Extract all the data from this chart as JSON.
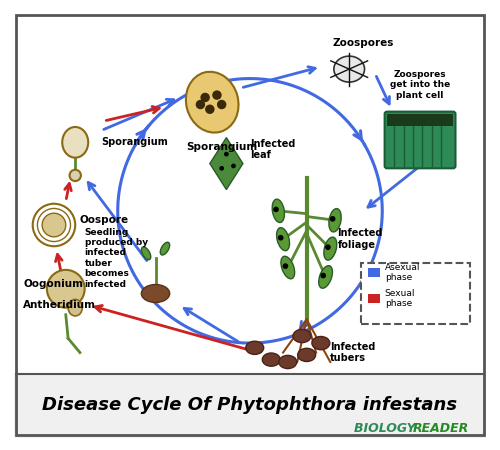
{
  "title": "Disease Cycle Of Phytophthora infestans",
  "title_fontsize": 13,
  "title_fontweight": "bold",
  "watermark": "BIOLOGY READER",
  "watermark_color1": "#2e8b57",
  "watermark_color2": "#228b22",
  "bg_color": "#ffffff",
  "border_color": "#333333",
  "bottom_bar_color": "#f5f5f5",
  "asexual_color": "#4169e1",
  "sexual_color": "#cc2222",
  "labels": {
    "zoospores": "Zoospores",
    "zoospores_cell": "Zoospores\nget into the\nplant cell",
    "sporangium_top": "Sporangium",
    "infected_leaf": "Infected\nleaf",
    "infected_foliage": "Infected\nfoliage",
    "infected_tubers": "Infected\ntubers",
    "seedling": "Seedling\nproduced by\ninfected\ntuber\nbecomes\ninfected",
    "oospore": "Oospore",
    "sporangium_left": "Sporangium",
    "oogonium": "Oogonium",
    "antheridium": "Antheridium",
    "asexual_phase": "Asexual\nphase",
    "sexual_phase": "Sexual\nphase"
  }
}
